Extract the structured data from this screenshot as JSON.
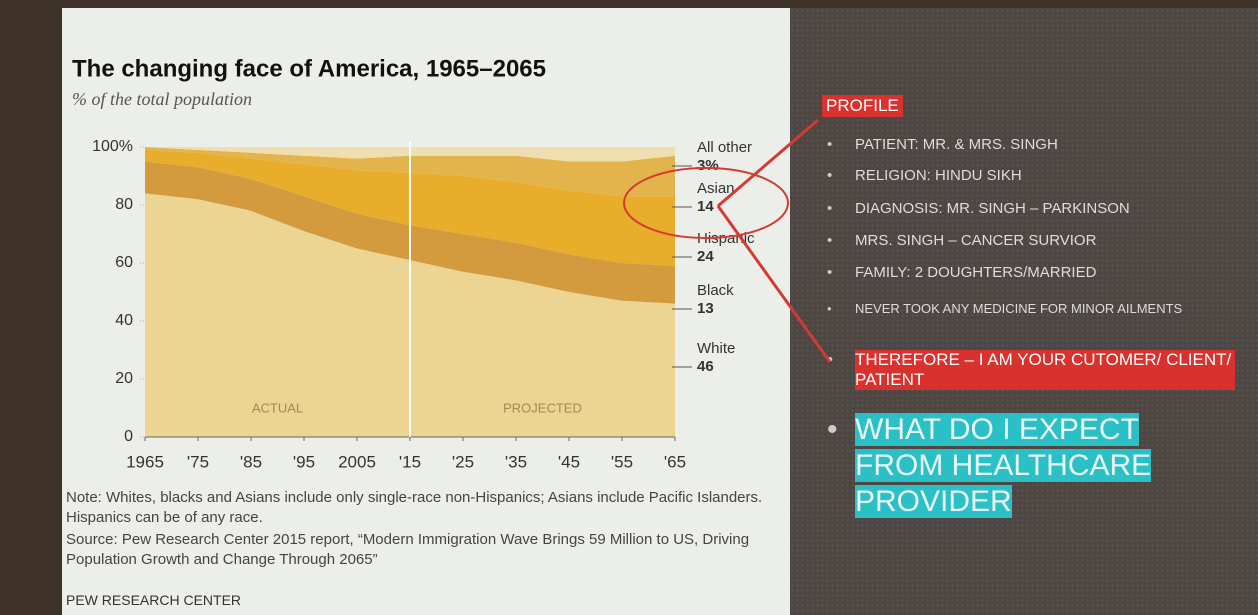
{
  "chart_data": {
    "type": "stacked-area",
    "title": "The changing face of America, 1965–2065",
    "subtitle": "% of the total population",
    "x": [
      1965,
      1975,
      1985,
      1995,
      2005,
      2015,
      2025,
      2035,
      2045,
      2055,
      2065
    ],
    "xlim": [
      1965,
      2065
    ],
    "xticks": [
      1965,
      {
        "value": 1975,
        "label": "'75"
      },
      {
        "value": 1985,
        "label": "'85"
      },
      {
        "value": 1995,
        "label": "'95"
      },
      2005,
      {
        "value": 2015,
        "label": "'15"
      },
      {
        "value": 2025,
        "label": "'25"
      },
      {
        "value": 2035,
        "label": "'35"
      },
      {
        "value": 2045,
        "label": "'45"
      },
      {
        "value": 2055,
        "label": "'55"
      },
      {
        "value": 2065,
        "label": "'65"
      }
    ],
    "ylim": [
      0,
      100
    ],
    "yticks": [
      0,
      20,
      40,
      60,
      80,
      {
        "value": 100,
        "label": "100%"
      }
    ],
    "grid": true,
    "series": [
      {
        "name": "White",
        "color": "#ecd493",
        "values": [
          84,
          82,
          78,
          71,
          65,
          61,
          57,
          54,
          50,
          47,
          46
        ]
      },
      {
        "name": "Black",
        "color": "#d39b3e",
        "values": [
          11,
          11,
          11,
          12,
          12,
          12,
          13,
          13,
          13,
          13,
          13
        ]
      },
      {
        "name": "Hispanic",
        "color": "#e7ad2b",
        "values": [
          4,
          5,
          7,
          11,
          15,
          18,
          20,
          21,
          22,
          23,
          24
        ]
      },
      {
        "name": "Asian",
        "color": "#e3b44c",
        "values": [
          1,
          1,
          2,
          3,
          4,
          6,
          7,
          9,
          10,
          12,
          14
        ]
      },
      {
        "name": "All other",
        "color": "#efdfb0",
        "values": [
          0,
          1,
          2,
          3,
          4,
          3,
          3,
          3,
          5,
          5,
          3
        ],
        "value_labels": [
          null,
          null,
          null,
          null,
          null,
          null,
          null,
          null,
          null,
          null,
          "3%"
        ]
      }
    ],
    "annotations": [
      "ACTUAL",
      "PROJECTED"
    ],
    "note": "Note: Whites, blacks and Asians include only single-race non-Hispanics; Asians include Pacific Islanders. Hispanics can be of any race.",
    "source": "Source: Pew Research Center 2015 report, “Modern Immigration Wave Brings 59 Million to US, Driving Population Growth and Change Through 2065”",
    "credit": "PEW RESEARCH CENTER"
  },
  "slide": {
    "heading": "PROFILE",
    "bullets": [
      "PATIENT: MR. & MRS. SINGH",
      "RELIGION: HINDU SIKH",
      "DIAGNOSIS: MR. SINGH – PARKINSON",
      "MRS. SINGH – CANCER SURVIOR",
      "FAMILY: 2 DOUGHTERS/MARRIED",
      "NEVER TOOK ANY MEDICINE FOR MINOR AILMENTS",
      "THEREFORE – I AM YOUR CUTOMER/ CLIENT/ PATIENT",
      "WHAT DO I EXPECT FROM HEALTHCARE PROVIDER"
    ]
  }
}
